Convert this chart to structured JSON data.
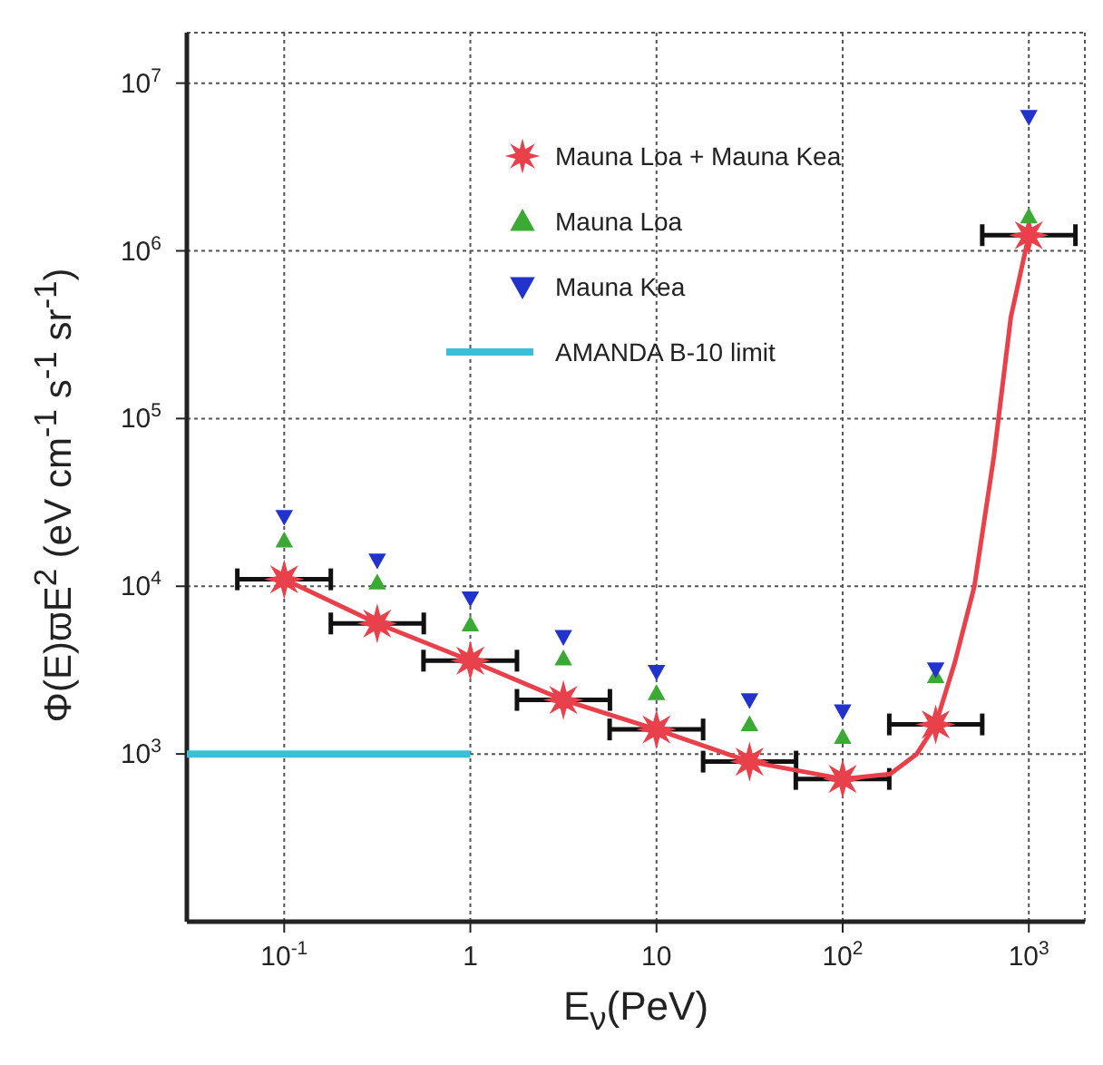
{
  "chart_data": {
    "type": "scatter",
    "xlabel": "E$_{ν}$(PeV)",
    "ylabel": "Φ(E)ϖE$^{2}$ (eV cm$^{-1}$ s$^{-1}$ sr$^{-1}$)",
    "log": "xy",
    "grid": true,
    "legend": "top",
    "line_style": "solid",
    "xlim": [
      0.03,
      2000
    ],
    "ylim": [
      100,
      20000000
    ],
    "xticks": [
      {
        "value": 0.1,
        "label": "10$^{-1}$"
      },
      1,
      10,
      {
        "value": 100,
        "label": "10$^{2}$"
      },
      {
        "value": 1000,
        "label": "10$^{3}$"
      }
    ],
    "yticks": [
      {
        "value": 1000,
        "label": "10$^{3}$"
      },
      {
        "value": 10000,
        "label": "10$^{4}$"
      },
      {
        "value": 100000,
        "label": "10$^{5}$"
      },
      {
        "value": 1000000,
        "label": "10$^{6}$"
      },
      {
        "value": 10000000,
        "label": "10$^{7}$"
      }
    ],
    "series": [
      {
        "name": "Mauna Loa + Mauna Kea",
        "marker": "star",
        "color": "#e8414b",
        "x": [
          0.1,
          0.316,
          1,
          3.16,
          10,
          31.6,
          100,
          316,
          1000
        ],
        "values": [
          11000,
          6000,
          3600,
          2100,
          1400,
          900,
          710,
          1500,
          1240000
        ],
        "xerrors": [
          [
            0.056,
            0.178
          ],
          [
            0.178,
            0.562
          ],
          [
            0.56,
            1.78
          ],
          [
            1.78,
            5.62
          ],
          [
            5.6,
            17.8
          ],
          [
            17.8,
            56.2
          ],
          [
            56,
            178
          ],
          [
            178,
            562
          ],
          [
            562,
            1780
          ]
        ]
      },
      {
        "name": "Mauna Loa",
        "marker": "triangle",
        "color": "#3aaa35",
        "x": [
          0.1,
          0.316,
          1,
          3.16,
          10,
          31.6,
          100,
          316,
          1000
        ],
        "values": [
          18700,
          10500,
          5900,
          3700,
          2300,
          1500,
          1260,
          2900,
          1600000
        ]
      },
      {
        "name": "Mauna Kea",
        "marker": "triangle-down",
        "color": "#2233cc",
        "x": [
          0.1,
          0.316,
          1,
          3.16,
          10,
          31.6,
          100,
          316,
          1000
        ],
        "values": [
          26000,
          14300,
          8500,
          5000,
          3100,
          2100,
          1800,
          3200,
          6300000
        ]
      },
      {
        "name": "AMANDA B-10 limit",
        "type": "line",
        "marker": "none",
        "color": "#3bbfd8",
        "x": [
          0.03,
          1
        ],
        "values": [
          1000,
          1000
        ]
      },
      {
        "type": "line",
        "marker": "none",
        "color": "#e8414b",
        "x": [
          0.1,
          0.316,
          1,
          3.16,
          10,
          31.6,
          100,
          180,
          250,
          316,
          400,
          510,
          650,
          800,
          1000
        ],
        "values": [
          11000,
          6000,
          3600,
          2100,
          1400,
          900,
          710,
          760,
          1000,
          1500,
          3500,
          10000,
          60000,
          400000,
          1240000
        ]
      }
    ]
  }
}
